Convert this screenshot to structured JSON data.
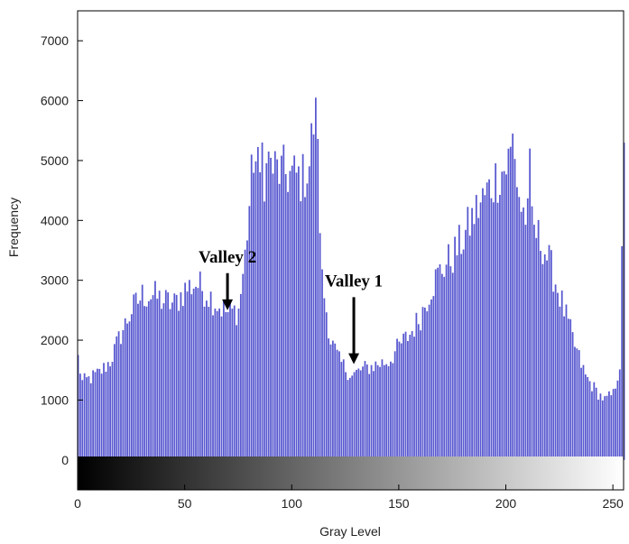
{
  "chart_data": {
    "type": "bar",
    "xlabel": "Gray Level",
    "ylabel": "Frequency",
    "xlim": [
      0,
      255
    ],
    "ylim": [
      -500,
      7500
    ],
    "xticks": [
      0,
      50,
      100,
      150,
      200,
      250
    ],
    "yticks": [
      0,
      1000,
      2000,
      3000,
      4000,
      5000,
      6000,
      7000
    ],
    "xtick_labels": [
      "0",
      "50",
      "100",
      "150",
      "200",
      "250"
    ],
    "ytick_labels": [
      "0",
      "1000",
      "2000",
      "3000",
      "4000",
      "5000",
      "6000",
      "7000"
    ],
    "grid": false,
    "bar_color": "#3b3bc8",
    "colorbar": "grayscale gradient from black (0) to white (255)",
    "keypoints": [
      [
        0,
        1700
      ],
      [
        2,
        1300
      ],
      [
        5,
        1350
      ],
      [
        10,
        1450
      ],
      [
        15,
        1650
      ],
      [
        20,
        2100
      ],
      [
        25,
        2500
      ],
      [
        30,
        2750
      ],
      [
        35,
        2750
      ],
      [
        40,
        2650
      ],
      [
        45,
        2600
      ],
      [
        50,
        2850
      ],
      [
        55,
        2950
      ],
      [
        60,
        2800
      ],
      [
        65,
        2600
      ],
      [
        70,
        2450
      ],
      [
        75,
        2500
      ],
      [
        78,
        3400
      ],
      [
        82,
        5100
      ],
      [
        85,
        4700
      ],
      [
        90,
        4900
      ],
      [
        95,
        4800
      ],
      [
        100,
        4750
      ],
      [
        105,
        4700
      ],
      [
        108,
        4950
      ],
      [
        111,
        6000
      ],
      [
        114,
        3000
      ],
      [
        118,
        2000
      ],
      [
        122,
        1650
      ],
      [
        128,
        1400
      ],
      [
        132,
        1500
      ],
      [
        140,
        1600
      ],
      [
        145,
        1650
      ],
      [
        150,
        1900
      ],
      [
        155,
        2100
      ],
      [
        160,
        2400
      ],
      [
        165,
        2900
      ],
      [
        170,
        3200
      ],
      [
        175,
        3400
      ],
      [
        180,
        3700
      ],
      [
        185,
        4100
      ],
      [
        190,
        4400
      ],
      [
        195,
        4700
      ],
      [
        200,
        4900
      ],
      [
        203,
        5200
      ],
      [
        207,
        4200
      ],
      [
        212,
        3900
      ],
      [
        217,
        3600
      ],
      [
        222,
        3100
      ],
      [
        227,
        2500
      ],
      [
        232,
        1900
      ],
      [
        237,
        1400
      ],
      [
        242,
        1150
      ],
      [
        246,
        1000
      ],
      [
        250,
        1100
      ],
      [
        253,
        1600
      ],
      [
        255,
        5000
      ]
    ],
    "spikes": [
      [
        86,
        5300
      ],
      [
        89,
        5150
      ],
      [
        111,
        6050
      ],
      [
        203,
        5450
      ],
      [
        211,
        5200
      ]
    ],
    "annotations": [
      {
        "text": "Valley 2",
        "x": 70,
        "y": 3300,
        "arrow_tip_y": 2500
      },
      {
        "text": "Valley 1",
        "x": 129,
        "y": 2900,
        "arrow_tip_y": 1600
      }
    ]
  }
}
